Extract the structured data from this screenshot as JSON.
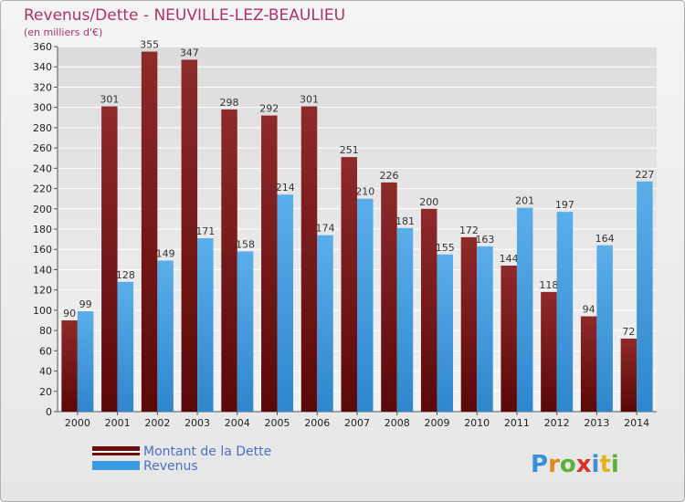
{
  "chart_data": {
    "type": "bar",
    "title": "Revenus/Dette - NEUVILLE-LEZ-BEAULIEU",
    "subtitle": "(en milliers d'€)",
    "categories": [
      "2000",
      "2001",
      "2002",
      "2003",
      "2004",
      "2005",
      "2006",
      "2007",
      "2008",
      "2009",
      "2010",
      "2011",
      "2012",
      "2013",
      "2014"
    ],
    "series": [
      {
        "name": "Montant de la Dette",
        "color": "#8b1a1a",
        "values": [
          90,
          301,
          355,
          347,
          298,
          292,
          301,
          251,
          226,
          200,
          172,
          144,
          118,
          94,
          72
        ]
      },
      {
        "name": "Revenus",
        "color": "#3a9ce0",
        "values": [
          99,
          128,
          149,
          171,
          158,
          214,
          174,
          210,
          181,
          155,
          163,
          201,
          197,
          164,
          227
        ]
      }
    ],
    "ylim": [
      0,
      360
    ],
    "ytick_step": 20,
    "grid": true,
    "legend_position": "bottom-left"
  },
  "logo": {
    "letters": [
      "P",
      "r",
      "o",
      "x",
      "i",
      "t",
      "i"
    ],
    "colors": [
      "#3a8fd9",
      "#e08a1e",
      "#5db33a",
      "#d8322a",
      "#3a8fd9",
      "#e0b41e",
      "#5db33a"
    ]
  }
}
